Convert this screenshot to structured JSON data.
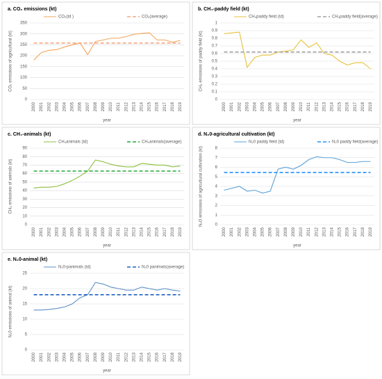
{
  "chart_data": [
    {
      "type": "line",
      "title": "a. CO₂ emissions (kt)",
      "xlabel": "year",
      "ylabel": "CO₂ emissions of agricultural (kt)",
      "categories": [
        "2000",
        "2001",
        "2002",
        "2003",
        "2004",
        "2005",
        "2006",
        "2007",
        "2008",
        "2009",
        "2010",
        "2011",
        "2012",
        "2013",
        "2014",
        "2015",
        "2016",
        "2017",
        "2018",
        "2019"
      ],
      "series": [
        {
          "name": "CO₂(td )",
          "color": "#f2a65a",
          "dashed": false,
          "values": [
            180,
            215,
            225,
            228,
            240,
            250,
            258,
            205,
            265,
            272,
            280,
            280,
            288,
            298,
            302,
            305,
            272,
            272,
            262,
            270
          ]
        },
        {
          "name": "CO₂(average)",
          "color": "#f4a582",
          "dashed": true,
          "values": [
            258,
            258,
            258,
            258,
            258,
            258,
            258,
            258,
            258,
            258,
            258,
            258,
            258,
            258,
            258,
            258,
            258,
            258,
            258,
            258
          ]
        }
      ],
      "ylim": [
        0,
        350
      ],
      "yticks": [
        0,
        50,
        100,
        150,
        200,
        250,
        300,
        350
      ],
      "grid": true
    },
    {
      "type": "line",
      "title": "b. CH₄-paddy field (kt)",
      "xlabel": "year",
      "ylabel": "CH₄ emissions of paddy field (kt)",
      "categories": [
        "2000",
        "2001",
        "2002",
        "2003",
        "2004",
        "2005",
        "2006",
        "2007",
        "2008",
        "2009",
        "2010",
        "2011",
        "2012",
        "2013",
        "2014",
        "2015",
        "2016",
        "2017",
        "2018",
        "2019"
      ],
      "series": [
        {
          "name": "CH₄paddy field (td)",
          "color": "#e6c23a",
          "dashed": false,
          "values": [
            0.86,
            0.87,
            0.88,
            0.42,
            0.55,
            0.58,
            0.58,
            0.62,
            0.63,
            0.65,
            0.78,
            0.68,
            0.74,
            0.6,
            0.58,
            0.5,
            0.45,
            0.48,
            0.48,
            0.4
          ]
        },
        {
          "name": "CH₄paddy field(average)",
          "color": "#a0a0a0",
          "dashed": true,
          "values": [
            0.62,
            0.62,
            0.62,
            0.62,
            0.62,
            0.62,
            0.62,
            0.62,
            0.62,
            0.62,
            0.62,
            0.62,
            0.62,
            0.62,
            0.62,
            0.62,
            0.62,
            0.62,
            0.62,
            0.62
          ]
        }
      ],
      "ylim": [
        0,
        1
      ],
      "yticks": [
        0,
        0.1,
        0.2,
        0.3,
        0.4,
        0.5,
        0.6,
        0.7,
        0.8,
        0.9,
        1
      ],
      "grid": true
    },
    {
      "type": "line",
      "title": "c. CH₄-animals (kt)",
      "xlabel": "year",
      "ylabel": "CH₄ emissions of animals (kt)",
      "categories": [
        "2000",
        "2001",
        "2002",
        "2003",
        "2004",
        "2005",
        "2006",
        "2007",
        "2008",
        "2009",
        "2010",
        "2011",
        "2012",
        "2013",
        "2014",
        "2015",
        "2016",
        "2017",
        "2018",
        "2019"
      ],
      "series": [
        {
          "name": "CH₄animals (td)",
          "color": "#8cbf3f",
          "dashed": false,
          "values": [
            43,
            44,
            44,
            45,
            48,
            52,
            57,
            63,
            76,
            74,
            71,
            69,
            68,
            68,
            72,
            71,
            70,
            70,
            68,
            69
          ]
        },
        {
          "name": "CH₄animals(average)",
          "color": "#22a63a",
          "dashed": true,
          "values": [
            63,
            63,
            63,
            63,
            63,
            63,
            63,
            63,
            63,
            63,
            63,
            63,
            63,
            63,
            63,
            63,
            63,
            63,
            63,
            63
          ]
        }
      ],
      "ylim": [
        0,
        90
      ],
      "yticks": [
        0,
        10,
        20,
        30,
        40,
        50,
        60,
        70,
        80,
        90
      ],
      "grid": true
    },
    {
      "type": "line",
      "title": "d. N₂0-agricultural cultivation (kt)",
      "xlabel": "year",
      "ylabel": "N₂O emissions of agricultural cultivation (kt)",
      "categories": [
        "2000",
        "2001",
        "2002",
        "2003",
        "2004",
        "2005",
        "2006",
        "2007",
        "2008",
        "2009",
        "2010",
        "2011",
        "2012",
        "2013",
        "2014",
        "2015",
        "2016",
        "2017",
        "2018",
        "2019"
      ],
      "series": [
        {
          "name": "N₂0 paddy field  (td)",
          "color": "#5aa0d8",
          "dashed": false,
          "values": [
            3.6,
            3.8,
            4.0,
            3.5,
            3.6,
            3.3,
            3.5,
            5.8,
            6.0,
            5.8,
            6.2,
            6.8,
            7.1,
            7.0,
            7.0,
            6.8,
            6.5,
            6.5,
            6.6,
            6.6
          ]
        },
        {
          "name": "N₂0 paddy field(average)",
          "color": "#1e90ff",
          "dashed": true,
          "values": [
            5.45,
            5.45,
            5.45,
            5.45,
            5.45,
            5.45,
            5.45,
            5.45,
            5.45,
            5.45,
            5.45,
            5.45,
            5.45,
            5.45,
            5.45,
            5.45,
            5.45,
            5.45,
            5.45,
            5.45
          ]
        }
      ],
      "ylim": [
        0,
        8
      ],
      "yticks": [
        0,
        1,
        2,
        3,
        4,
        5,
        6,
        7,
        8
      ],
      "grid": true
    },
    {
      "type": "line",
      "title": "e. N₂0-animal (kt)",
      "xlabel": "year",
      "ylabel": "N₂0 emissions of animal (kt)",
      "categories": [
        "2000",
        "2001",
        "2002",
        "2003",
        "2004",
        "2005",
        "2006",
        "2007",
        "2008",
        "2009",
        "2010",
        "2011",
        "2012",
        "2013",
        "2014",
        "2015",
        "2016",
        "2017",
        "2018",
        "2019"
      ],
      "series": [
        {
          "name": "N₂0-panimals (td)",
          "color": "#5b8fc9",
          "dashed": false,
          "values": [
            13,
            13,
            13.2,
            13.5,
            14,
            15,
            17,
            18,
            22,
            21.5,
            20.5,
            20,
            19.5,
            19.5,
            20.5,
            20,
            19.5,
            20,
            19.5,
            19.2
          ]
        },
        {
          "name": "N₂0 panimals(average)",
          "color": "#1f5fbf",
          "dashed": true,
          "values": [
            18,
            18,
            18,
            18,
            18,
            18,
            18,
            18,
            18,
            18,
            18,
            18,
            18,
            18,
            18,
            18,
            18,
            18,
            18,
            18
          ]
        }
      ],
      "ylim": [
        0,
        25
      ],
      "yticks": [
        0,
        5,
        10,
        15,
        20,
        25
      ],
      "grid": true
    }
  ]
}
